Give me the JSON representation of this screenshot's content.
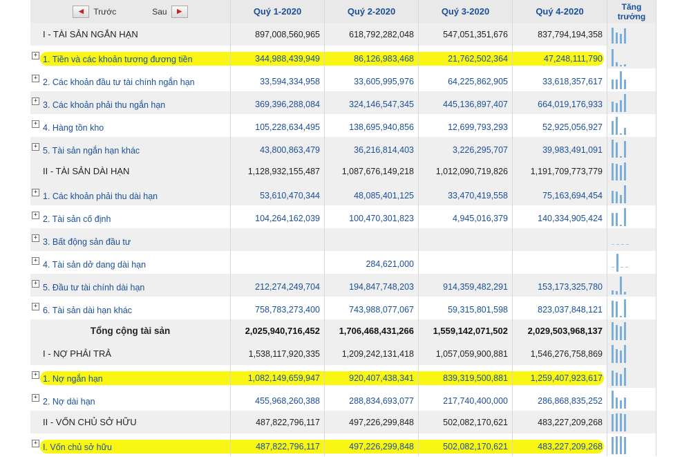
{
  "header": {
    "prev_label": "Trước",
    "next_label": "Sau",
    "prev_icon": "arrow-left-icon",
    "next_icon": "arrow-right-icon",
    "quarters": [
      "Quý 1-2020",
      "Quý 2-2020",
      "Quý 3-2020",
      "Quý 4-2020"
    ],
    "growth_line1": "Tăng",
    "growth_line2": "trưởng"
  },
  "colors": {
    "link": "#1a4f9c",
    "highlight": "#f8f500",
    "spark": "#7aaee0"
  },
  "rows": [
    {
      "type": "section",
      "label": "I - TÀI SẢN NGẮN HẠN",
      "values": [
        "897,008,560,965",
        "618,792,282,048",
        "547,051,351,676",
        "837,794,194,358"
      ],
      "growth": [
        0.9,
        0.62,
        0.55,
        0.84
      ]
    },
    {
      "type": "item",
      "expand": "+",
      "label": "1. Tiền và các khoản tương đương tiền",
      "values": [
        "344,988,439,949",
        "86,126,983,468",
        "21,762,502,364",
        "47,248,111,790"
      ],
      "growth": [
        0.95,
        0.24,
        0.06,
        0.13
      ],
      "highlight": true
    },
    {
      "type": "item",
      "expand": "+",
      "label": "2. Các khoản đầu tư tài chính ngắn hạn",
      "values": [
        "33,594,334,958",
        "33,605,995,976",
        "64,225,862,905",
        "33,618,357,617"
      ],
      "growth": [
        0.52,
        0.52,
        1.0,
        0.52
      ]
    },
    {
      "type": "item",
      "expand": "+",
      "label": "3. Các khoản phải thu ngắn hạn",
      "values": [
        "369,396,288,084",
        "324,146,547,345",
        "445,136,897,407",
        "664,019,176,933"
      ],
      "growth": [
        0.56,
        0.49,
        0.67,
        1.0
      ]
    },
    {
      "type": "item",
      "expand": "+",
      "label": "4. Hàng tồn kho",
      "values": [
        "105,228,634,495",
        "138,695,940,856",
        "12,699,793,293",
        "52,925,056,927"
      ],
      "growth": [
        0.76,
        1.0,
        0.09,
        0.38
      ]
    },
    {
      "type": "item",
      "expand": "+",
      "label": "5. Tài sản ngắn hạn khác",
      "values": [
        "43,800,863,479",
        "36,216,814,403",
        "3,226,295,707",
        "39,983,491,091"
      ],
      "growth": [
        1.0,
        0.83,
        0.07,
        0.91
      ]
    },
    {
      "type": "section",
      "label": "II - TÀI SẢN DÀI HẠN",
      "values": [
        "1,128,932,155,487",
        "1,087,676,149,218",
        "1,012,090,719,826",
        "1,191,709,773,779"
      ],
      "growth": [
        0.95,
        0.91,
        0.85,
        1.0
      ]
    },
    {
      "type": "item",
      "expand": "+",
      "label": "1. Các khoản phải thu dài hạn",
      "values": [
        "53,610,470,344",
        "48,085,401,125",
        "33,470,419,558",
        "75,163,694,454"
      ],
      "growth": [
        0.71,
        0.64,
        0.45,
        1.0
      ]
    },
    {
      "type": "item",
      "expand": "+",
      "label": "2. Tài sản cố định",
      "values": [
        "104,264,162,039",
        "100,470,301,823",
        "4,945,016,379",
        "140,334,905,424"
      ],
      "growth": [
        0.74,
        0.72,
        0.04,
        1.0
      ]
    },
    {
      "type": "item",
      "expand": "+",
      "label": "3. Bất động sản đầu tư",
      "values": [
        "",
        "",
        "",
        ""
      ],
      "growth": [
        0,
        0,
        0,
        0
      ]
    },
    {
      "type": "item",
      "expand": "+",
      "label": "4. Tài sản dở dang dài hạn",
      "values": [
        "",
        "284,621,000",
        "",
        ""
      ],
      "growth": [
        0,
        1.0,
        0,
        0
      ]
    },
    {
      "type": "item",
      "expand": "+",
      "label": "5. Đầu tư tài chính dài hạn",
      "values": [
        "212,274,249,704",
        "194,847,748,203",
        "914,359,482,291",
        "153,173,325,780"
      ],
      "growth": [
        0.23,
        0.21,
        1.0,
        0.17
      ]
    },
    {
      "type": "item",
      "expand": "+",
      "label": "6. Tài sản dài hạn khác",
      "values": [
        "758,783,273,400",
        "743,988,077,067",
        "59,315,801,598",
        "823,037,848,121"
      ],
      "growth": [
        0.92,
        0.9,
        0.07,
        1.0
      ]
    },
    {
      "type": "total",
      "label": "Tổng cộng tài sản",
      "values": [
        "2,025,940,716,452",
        "1,706,468,431,266",
        "1,559,142,071,502",
        "2,029,503,968,137"
      ],
      "growth": [
        1.0,
        0.84,
        0.77,
        1.0
      ]
    },
    {
      "type": "section",
      "label": "I - NỢ PHẢI TRẢ",
      "values": [
        "1,538,117,920,335",
        "1,209,242,131,418",
        "1,057,059,900,881",
        "1,546,276,758,869"
      ],
      "growth": [
        0.99,
        0.78,
        0.68,
        1.0
      ]
    },
    {
      "type": "item",
      "expand": "+",
      "label": "1. Nợ ngắn hạn",
      "values": [
        "1,082,149,659,947",
        "920,407,438,341",
        "839,319,500,881",
        "1,259,407,923,617"
      ],
      "growth": [
        0.86,
        0.73,
        0.67,
        1.0
      ],
      "highlight": true
    },
    {
      "type": "item",
      "expand": "+",
      "label": "2. Nợ dài hạn",
      "values": [
        "455,968,260,388",
        "288,834,693,077",
        "217,740,400,000",
        "286,868,835,252"
      ],
      "growth": [
        1.0,
        0.63,
        0.48,
        0.63
      ]
    },
    {
      "type": "section",
      "label": "II - VỐN CHỦ SỞ HỮU",
      "values": [
        "487,822,796,117",
        "497,226,299,848",
        "502,082,170,621",
        "483,227,209,268"
      ],
      "growth": [
        0.97,
        0.99,
        1.0,
        0.96
      ]
    },
    {
      "type": "item",
      "expand": "+",
      "label": "I. Vốn chủ sở hữu",
      "values": [
        "487,822,796,117",
        "497,226,299,848",
        "502,082,170,621",
        "483,227,209,268"
      ],
      "growth": [
        0.97,
        0.99,
        1.0,
        0.96
      ],
      "highlight": true
    }
  ]
}
